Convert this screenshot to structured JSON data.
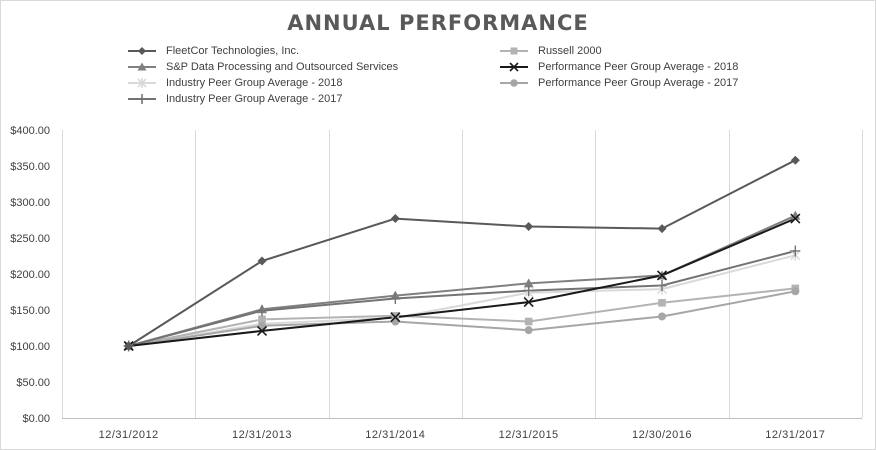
{
  "chart_data": {
    "type": "line",
    "title": "ANNUAL PERFORMANCE",
    "xlabel": "",
    "ylabel": "",
    "categories": [
      "12/31/2012",
      "12/31/2013",
      "12/31/2014",
      "12/31/2015",
      "12/30/2016",
      "12/31/2017"
    ],
    "ylim": [
      0,
      400
    ],
    "yticks": [
      "$0.00",
      "$50.00",
      "$100.00",
      "$150.00",
      "$200.00",
      "$250.00",
      "$300.00",
      "$350.00",
      "$400.00"
    ],
    "grid": "vertical",
    "legend_position": "top",
    "series": [
      {
        "name": "FleetCor Technologies, Inc.",
        "values": [
          100,
          218,
          277,
          266,
          263,
          358
        ],
        "color": "#595959",
        "marker": "diamond"
      },
      {
        "name": "Russell 2000",
        "values": [
          100,
          137,
          142,
          134,
          160,
          180
        ],
        "color": "#b3b3b3",
        "marker": "square"
      },
      {
        "name": "S&P Data Processing and Outsourced Services",
        "values": [
          100,
          151,
          170,
          187,
          198,
          281
        ],
        "color": "#808080",
        "marker": "triangle"
      },
      {
        "name": "Performance Peer Group Average - 2018",
        "values": [
          100,
          121,
          140,
          161,
          198,
          277
        ],
        "color": "#1a1a1a",
        "marker": "x"
      },
      {
        "name": "Industry Peer Group Average - 2018",
        "values": [
          100,
          131,
          139,
          174,
          179,
          226
        ],
        "color": "#d9d9d9",
        "marker": "star"
      },
      {
        "name": "Performance Peer Group Average - 2017",
        "values": [
          100,
          128,
          134,
          122,
          141,
          176
        ],
        "color": "#a6a6a6",
        "marker": "circle"
      },
      {
        "name": "Industry Peer Group Average - 2017",
        "values": [
          100,
          149,
          166,
          177,
          184,
          232
        ],
        "color": "#737373",
        "marker": "plus"
      }
    ]
  }
}
